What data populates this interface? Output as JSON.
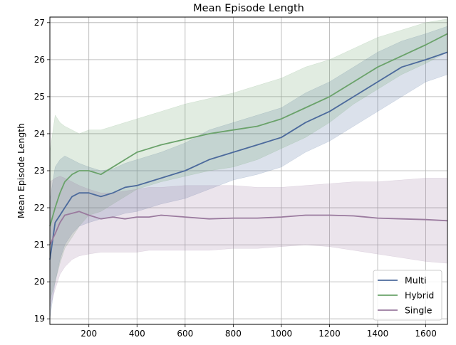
{
  "chart_data": {
    "type": "line",
    "title": "Mean Episode Length",
    "xlabel": "",
    "ylabel": "Mean Episode Length",
    "xlim": [
      38,
      1690
    ],
    "ylim": [
      18.85,
      27.15
    ],
    "xticks": [
      200,
      400,
      600,
      800,
      1000,
      1200,
      1400,
      1600
    ],
    "yticks": [
      19,
      20,
      21,
      22,
      23,
      24,
      25,
      26,
      27
    ],
    "grid": true,
    "legend_position": "lower-right",
    "x": [
      38,
      60,
      80,
      100,
      130,
      160,
      200,
      250,
      300,
      350,
      400,
      450,
      500,
      600,
      700,
      800,
      900,
      1000,
      1100,
      1200,
      1300,
      1400,
      1500,
      1600,
      1690
    ],
    "series": [
      {
        "name": "Multi",
        "color": "#4c6a9c",
        "values": [
          20.6,
          21.6,
          21.8,
          22.0,
          22.3,
          22.4,
          22.4,
          22.3,
          22.4,
          22.55,
          22.6,
          22.7,
          22.8,
          23.0,
          23.3,
          23.5,
          23.7,
          23.9,
          24.3,
          24.6,
          25.0,
          25.4,
          25.8,
          26.0,
          26.2
        ],
        "lower": [
          19.0,
          20.0,
          20.6,
          21.0,
          21.3,
          21.5,
          21.6,
          21.7,
          21.75,
          21.85,
          21.9,
          22.0,
          22.1,
          22.25,
          22.5,
          22.75,
          22.9,
          23.1,
          23.5,
          23.8,
          24.2,
          24.6,
          25.0,
          25.4,
          25.6
        ],
        "upper": [
          22.2,
          23.1,
          23.3,
          23.4,
          23.3,
          23.2,
          23.1,
          23.0,
          23.05,
          23.2,
          23.3,
          23.4,
          23.5,
          23.75,
          24.1,
          24.3,
          24.5,
          24.7,
          25.1,
          25.4,
          25.8,
          26.2,
          26.5,
          26.7,
          26.9
        ]
      },
      {
        "name": "Hybrid",
        "color": "#6aa26a",
        "values": [
          21.5,
          22.0,
          22.4,
          22.7,
          22.9,
          23.0,
          23.0,
          22.9,
          23.1,
          23.3,
          23.5,
          23.6,
          23.7,
          23.85,
          24.0,
          24.1,
          24.2,
          24.4,
          24.7,
          25.0,
          25.4,
          25.8,
          26.1,
          26.4,
          26.7
        ],
        "lower": [
          19.5,
          20.0,
          20.5,
          20.9,
          21.2,
          21.5,
          21.8,
          21.9,
          22.1,
          22.3,
          22.5,
          22.6,
          22.7,
          22.85,
          23.0,
          23.1,
          23.3,
          23.6,
          23.9,
          24.3,
          24.8,
          25.2,
          25.6,
          25.9,
          26.2
        ],
        "upper": [
          23.5,
          24.5,
          24.3,
          24.2,
          24.1,
          24.0,
          24.1,
          24.1,
          24.2,
          24.3,
          24.4,
          24.5,
          24.6,
          24.8,
          24.95,
          25.1,
          25.3,
          25.5,
          25.8,
          26.0,
          26.3,
          26.6,
          26.8,
          27.0,
          27.1
        ]
      },
      {
        "name": "Single",
        "color": "#9a7a9e",
        "values": [
          21.0,
          21.3,
          21.6,
          21.8,
          21.85,
          21.9,
          21.8,
          21.7,
          21.75,
          21.7,
          21.75,
          21.75,
          21.8,
          21.75,
          21.7,
          21.72,
          21.72,
          21.75,
          21.8,
          21.8,
          21.78,
          21.72,
          21.7,
          21.68,
          21.65
        ],
        "lower": [
          19.3,
          19.8,
          20.2,
          20.4,
          20.6,
          20.7,
          20.75,
          20.8,
          20.8,
          20.8,
          20.8,
          20.85,
          20.85,
          20.85,
          20.85,
          20.9,
          20.9,
          20.95,
          21.0,
          20.95,
          20.85,
          20.75,
          20.65,
          20.55,
          20.5
        ],
        "upper": [
          22.7,
          22.8,
          22.85,
          22.8,
          22.7,
          22.6,
          22.5,
          22.4,
          22.4,
          22.45,
          22.5,
          22.55,
          22.55,
          22.6,
          22.6,
          22.6,
          22.55,
          22.55,
          22.6,
          22.65,
          22.7,
          22.7,
          22.75,
          22.8,
          22.8
        ]
      }
    ]
  }
}
